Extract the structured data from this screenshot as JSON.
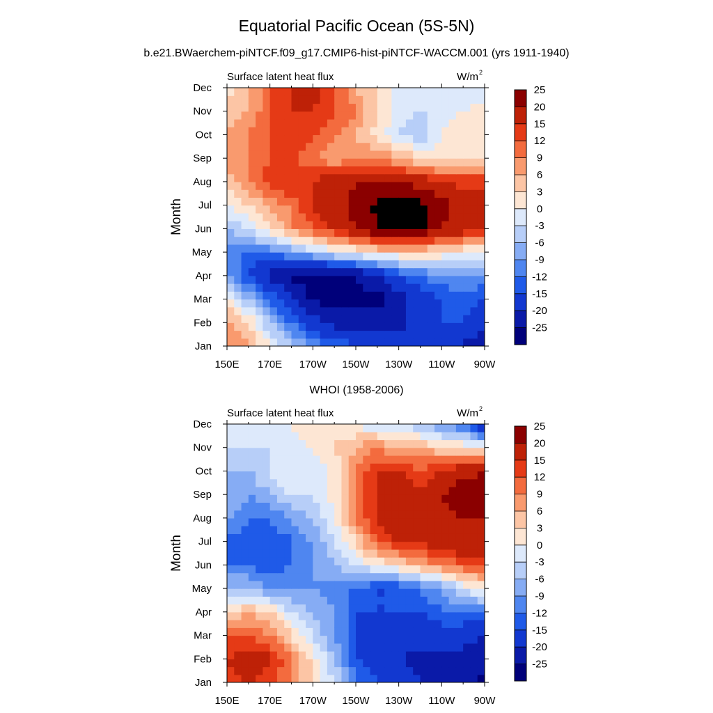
{
  "figure": {
    "title": "Equatorial Pacific Ocean (5S-5N)",
    "subtitle": "b.e21.BWaerchem-piNTCF.f09_g17.CMIP6-hist-piNTCF-WACCM.001 (yrs 1911-1940)"
  },
  "colorbar": {
    "levels": [
      -25,
      -20,
      -15,
      -12,
      -9,
      -6,
      -3,
      0,
      3,
      6,
      9,
      12,
      15,
      20,
      25
    ],
    "labels": [
      "-25",
      "-20",
      "-15",
      "-12",
      "-9",
      "-6",
      "-3",
      "0",
      "3",
      "6",
      "9",
      "12",
      "15",
      "20",
      "25"
    ],
    "colors": [
      "#00007a",
      "#0a1aa8",
      "#1238d0",
      "#1f5ae8",
      "#4f86f0",
      "#86acf4",
      "#b7cef8",
      "#dde9fb",
      "#fde6d4",
      "#fcc5a5",
      "#f99a6e",
      "#f36b3e",
      "#e53a16",
      "#be2107",
      "#8b0000"
    ]
  },
  "chart_data": [
    {
      "type": "heatmap",
      "title": "",
      "left_label": "Surface latent heat flux",
      "right_label": "W/m",
      "right_label_sup": "2",
      "xlabel": "",
      "ylabel": "Month",
      "x_ticks": [
        "150E",
        "170E",
        "170W",
        "150W",
        "130W",
        "110W",
        "90W"
      ],
      "y_ticks": [
        "Jan",
        "Feb",
        "Mar",
        "Apr",
        "May",
        "Jun",
        "Jul",
        "Aug",
        "Sep",
        "Oct",
        "Nov",
        "Dec"
      ],
      "xlim": [
        "150E",
        "90W"
      ],
      "ylim": [
        "Jan",
        "Dec"
      ],
      "x": [
        150,
        160,
        170,
        180,
        190,
        200,
        210,
        220,
        230,
        240,
        250,
        260,
        270
      ],
      "y": [
        "Jan",
        "Feb",
        "Mar",
        "Apr",
        "May",
        "Jun",
        "Jul",
        "Aug",
        "Sep",
        "Oct",
        "Nov",
        "Dec"
      ],
      "z": [
        [
          9,
          6,
          1,
          -6,
          -9,
          -12,
          -14,
          -15,
          -15,
          -15,
          -15,
          -20,
          -25
        ],
        [
          6,
          3,
          -6,
          -12,
          -18,
          -22,
          -22,
          -22,
          -22,
          -18,
          -15,
          -15,
          -20
        ],
        [
          2,
          -6,
          -12,
          -20,
          -26,
          -27,
          -27,
          -27,
          -22,
          -18,
          -15,
          -14,
          -15
        ],
        [
          -9,
          -15,
          -22,
          -26,
          -27,
          -27,
          -25,
          -20,
          -15,
          -12,
          -10,
          -9,
          -10
        ],
        [
          -12,
          -12,
          -12,
          -8,
          -5,
          -2,
          0,
          2,
          3,
          3,
          2,
          0,
          0
        ],
        [
          -6,
          -3,
          3,
          8,
          12,
          15,
          20,
          25,
          26,
          26,
          20,
          18,
          16
        ],
        [
          0,
          3,
          6,
          10,
          15,
          18,
          22,
          26,
          27,
          27,
          22,
          18,
          16
        ],
        [
          3,
          9,
          14,
          15,
          15,
          18,
          20,
          20,
          20,
          18,
          15,
          14,
          14
        ],
        [
          9,
          9,
          12,
          12,
          9,
          6,
          9,
          9,
          6,
          3,
          2,
          2,
          3
        ],
        [
          6,
          9,
          12,
          15,
          13,
          10,
          6,
          2,
          -3,
          -6,
          0,
          2,
          3
        ],
        [
          3,
          6,
          12,
          15,
          15,
          12,
          9,
          3,
          -1,
          -3,
          -2,
          0,
          1
        ],
        [
          2,
          5,
          12,
          15,
          18,
          12,
          6,
          3,
          -1,
          -3,
          -3,
          -2,
          -1
        ]
      ]
    },
    {
      "type": "heatmap",
      "title": "WHOI (1958-2006)",
      "left_label": "Surface latent heat flux",
      "right_label": "W/m",
      "right_label_sup": "2",
      "xlabel": "",
      "ylabel": "Month",
      "x_ticks": [
        "150E",
        "170E",
        "170W",
        "150W",
        "130W",
        "110W",
        "90W"
      ],
      "y_ticks": [
        "Jan",
        "Feb",
        "Mar",
        "Apr",
        "May",
        "Jun",
        "Jul",
        "Aug",
        "Sep",
        "Oct",
        "Nov",
        "Dec"
      ],
      "xlim": [
        "150E",
        "90W"
      ],
      "ylim": [
        "Jan",
        "Dec"
      ],
      "x": [
        150,
        160,
        170,
        180,
        190,
        200,
        210,
        220,
        230,
        240,
        250,
        260,
        270
      ],
      "y": [
        "Jan",
        "Feb",
        "Mar",
        "Apr",
        "May",
        "Jun",
        "Jul",
        "Aug",
        "Sep",
        "Oct",
        "Nov",
        "Dec"
      ],
      "z": [
        [
          12,
          15,
          12,
          9,
          3,
          -3,
          -12,
          -15,
          -18,
          -20,
          -20,
          -22,
          -26
        ],
        [
          15,
          18,
          16,
          9,
          2,
          -6,
          -15,
          -18,
          -20,
          -22,
          -22,
          -22,
          -24
        ],
        [
          12,
          12,
          9,
          3,
          -3,
          -9,
          -15,
          -18,
          -18,
          -18,
          -18,
          -18,
          -20
        ],
        [
          3,
          6,
          3,
          -3,
          -6,
          -9,
          -15,
          -15,
          -15,
          -15,
          -12,
          -12,
          -12
        ],
        [
          -6,
          -6,
          -9,
          -9,
          -9,
          -12,
          -12,
          -15,
          -15,
          -12,
          -9,
          -3,
          2
        ],
        [
          -12,
          -12,
          -15,
          -12,
          -9,
          -6,
          -3,
          0,
          3,
          6,
          9,
          12,
          12
        ],
        [
          -12,
          -15,
          -15,
          -12,
          -9,
          -3,
          3,
          12,
          15,
          15,
          18,
          20,
          18
        ],
        [
          -9,
          -12,
          -12,
          -9,
          -6,
          0,
          9,
          15,
          18,
          15,
          18,
          20,
          20
        ],
        [
          -6,
          -9,
          -6,
          -3,
          -3,
          1,
          9,
          15,
          20,
          15,
          20,
          23,
          26
        ],
        [
          -6,
          -6,
          -3,
          0,
          -3,
          1,
          9,
          15,
          15,
          12,
          15,
          18,
          20
        ],
        [
          -3,
          -3,
          -3,
          -3,
          0,
          3,
          6,
          9,
          6,
          6,
          3,
          3,
          0
        ],
        [
          -3,
          -3,
          0,
          0,
          3,
          2,
          0,
          -3,
          -3,
          -6,
          -9,
          -12,
          -20
        ]
      ]
    }
  ]
}
